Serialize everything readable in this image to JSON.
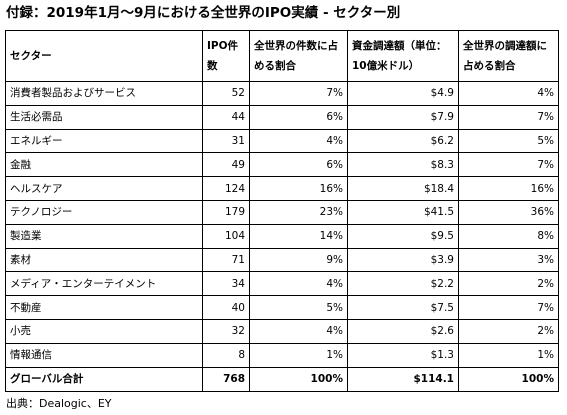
{
  "title": "付録：2019年1月～9月における全世界のIPO実績 - セクター別",
  "table": {
    "headers": {
      "sector": "セクター",
      "ipo_count": "IPO件数",
      "share_count": "全世界の件数に占める割合",
      "proceeds": "資金調達額（単位：10億米ドル）",
      "share_proceeds": "全世界の調達額に占める割合"
    },
    "rows": [
      {
        "sector": "消費者製品およびサービス",
        "ipo": "52",
        "share_count": "7%",
        "proceeds": "$4.9",
        "share_proceeds": "4%"
      },
      {
        "sector": "生活必需品",
        "ipo": "44",
        "share_count": "6%",
        "proceeds": "$7.9",
        "share_proceeds": "7%"
      },
      {
        "sector": "エネルギー",
        "ipo": "31",
        "share_count": "4%",
        "proceeds": "$6.2",
        "share_proceeds": "5%"
      },
      {
        "sector": "金融",
        "ipo": "49",
        "share_count": "6%",
        "proceeds": "$8.3",
        "share_proceeds": "7%"
      },
      {
        "sector": "ヘルスケア",
        "ipo": "124",
        "share_count": "16%",
        "proceeds": "$18.4",
        "share_proceeds": "16%"
      },
      {
        "sector": "テクノロジー",
        "ipo": "179",
        "share_count": "23%",
        "proceeds": "$41.5",
        "share_proceeds": "36%"
      },
      {
        "sector": "製造業",
        "ipo": "104",
        "share_count": "14%",
        "proceeds": "$9.5",
        "share_proceeds": "8%"
      },
      {
        "sector": "素材",
        "ipo": "71",
        "share_count": "9%",
        "proceeds": "$3.9",
        "share_proceeds": "3%"
      },
      {
        "sector": "メディア・エンターテイメント",
        "ipo": "34",
        "share_count": "4%",
        "proceeds": "$2.2",
        "share_proceeds": "2%"
      },
      {
        "sector": "不動産",
        "ipo": "40",
        "share_count": "5%",
        "proceeds": "$7.5",
        "share_proceeds": "7%"
      },
      {
        "sector": "小売",
        "ipo": "32",
        "share_count": "4%",
        "proceeds": "$2.6",
        "share_proceeds": "2%"
      },
      {
        "sector": "情報通信",
        "ipo": "8",
        "share_count": "1%",
        "proceeds": "$1.3",
        "share_proceeds": "1%"
      }
    ],
    "total": {
      "sector": "グローバル合計",
      "ipo": "768",
      "share_count": "100%",
      "proceeds": "$114.1",
      "share_proceeds": "100%"
    }
  },
  "source": "出典：Dealogic、EY"
}
